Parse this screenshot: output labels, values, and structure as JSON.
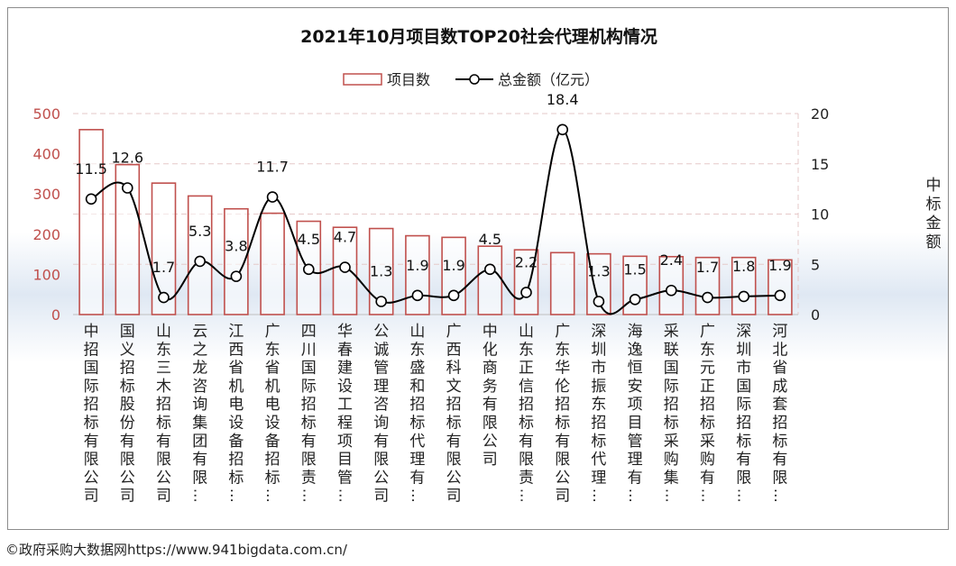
{
  "chart_data": {
    "type": "bar+line",
    "title": "2021年10月项目数TOP20社会代理机构情况",
    "categories": [
      "中招国际招标有限公司",
      "国义招标股份有限公司",
      "山东三木招标有限公司",
      "云之龙咨询集团有限…",
      "江西省机电设备招标…",
      "广东省机电设备招标…",
      "四川国际招标有限责…",
      "华春建设工程项目管…",
      "公诚管理咨询有限公司",
      "山东盛和招标代理有…",
      "广西科文招标有限公司",
      "中化商务有限公司",
      "山东正信招标有限责…",
      "广东华伦招标有限公司",
      "深圳市振东招标代理…",
      "海逸恒安项目管理有…",
      "采联国际招标采购集…",
      "广东元正招标采购有…",
      "深圳市国际招标有限…",
      "河北省成套招标有限…"
    ],
    "series": [
      {
        "name": "项目数",
        "type": "bar",
        "axis": "left",
        "values": [
          460,
          373,
          327,
          295,
          263,
          252,
          232,
          217,
          214,
          196,
          192,
          170,
          161,
          154,
          151,
          145,
          144,
          142,
          142,
          136
        ],
        "color": "#c0504d"
      },
      {
        "name": "总金额（亿元）",
        "type": "line",
        "axis": "right",
        "values": [
          11.5,
          12.6,
          1.7,
          5.3,
          3.8,
          11.7,
          4.5,
          4.7,
          1.3,
          1.9,
          1.9,
          4.5,
          2.2,
          18.4,
          1.3,
          1.5,
          2.4,
          1.7,
          1.8,
          1.9
        ],
        "labels": [
          "11.5",
          "12.6",
          "1.7",
          "5.3",
          "3.8",
          "11.7",
          "4.5",
          "4.7",
          "1.3",
          "1.9",
          "1.9",
          "4.5",
          "2.2",
          "18.4",
          "1.3",
          "1.5",
          "2.4",
          "1.7",
          "1.8",
          "1.9"
        ],
        "color": "#000000"
      }
    ],
    "y_left": {
      "min": 0,
      "max": 500,
      "ticks": [
        "0",
        "100",
        "200",
        "300",
        "400",
        "500"
      ],
      "tick_color": "#c0504d"
    },
    "y_right": {
      "min": 0,
      "max": 20,
      "ticks": [
        "0",
        "5",
        "10",
        "15",
        "20"
      ],
      "label": "中标金额"
    },
    "grid": true,
    "legend_position": "top-center"
  },
  "footer": "©政府采购大数据网https://www.941bigdata.com.cn/"
}
